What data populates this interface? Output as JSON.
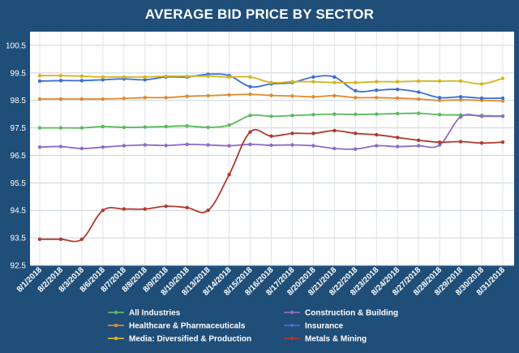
{
  "chart_data": {
    "type": "line",
    "title": "AVERAGE BID PRICE BY SECTOR",
    "xlabel": "",
    "ylabel": "",
    "ylim": [
      92.5,
      101
    ],
    "yticks": [
      92.5,
      93.5,
      94.5,
      95.5,
      96.5,
      97.5,
      98.5,
      99.5,
      100.5
    ],
    "grid": true,
    "legend_position": "bottom",
    "categories": [
      "8/1/2018",
      "8/2/2018",
      "8/3/2018",
      "8/6/2018",
      "8/7/2018",
      "8/8/2018",
      "8/9/2018",
      "8/10/2018",
      "8/13/2018",
      "8/14/2018",
      "8/15/2018",
      "8/16/2018",
      "8/17/2018",
      "8/20/2018",
      "8/21/2018",
      "8/22/2018",
      "8/23/2018",
      "8/24/2018",
      "8/27/2018",
      "8/28/2018",
      "8/29/2018",
      "8/30/2018",
      "8/31/2018"
    ],
    "series": [
      {
        "name": "All Industries",
        "color": "#5cb85c",
        "values": [
          97.5,
          97.5,
          97.5,
          97.55,
          97.52,
          97.53,
          97.55,
          97.57,
          97.52,
          97.6,
          97.95,
          97.92,
          97.95,
          97.98,
          98.0,
          97.99,
          98.0,
          98.02,
          98.03,
          97.98,
          97.97,
          97.95,
          97.93
        ]
      },
      {
        "name": "Construction & Building",
        "color": "#8e6ac8",
        "values": [
          96.8,
          96.82,
          96.75,
          96.8,
          96.85,
          96.88,
          96.86,
          96.9,
          96.88,
          96.85,
          96.9,
          96.87,
          96.88,
          96.85,
          96.75,
          96.73,
          96.85,
          96.82,
          96.85,
          96.88,
          97.9,
          97.92,
          97.92
        ]
      },
      {
        "name": "Healthcare & Pharmaceuticals",
        "color": "#e08a2c",
        "values": [
          98.55,
          98.55,
          98.55,
          98.55,
          98.57,
          98.6,
          98.6,
          98.65,
          98.67,
          98.7,
          98.72,
          98.68,
          98.66,
          98.63,
          98.67,
          98.6,
          98.6,
          98.58,
          98.55,
          98.5,
          98.52,
          98.5,
          98.48
        ]
      },
      {
        "name": "Insurance",
        "color": "#3b6fd6",
        "values": [
          99.2,
          99.22,
          99.22,
          99.25,
          99.28,
          99.25,
          99.35,
          99.35,
          99.45,
          99.4,
          99.0,
          99.1,
          99.15,
          99.35,
          99.35,
          98.85,
          98.87,
          98.9,
          98.8,
          98.6,
          98.63,
          98.58,
          98.58
        ]
      },
      {
        "name": "Media: Diversified & Production",
        "color": "#d6b51f",
        "values": [
          99.4,
          99.4,
          99.38,
          99.35,
          99.35,
          99.35,
          99.38,
          99.38,
          99.38,
          99.35,
          99.35,
          99.15,
          99.18,
          99.18,
          99.15,
          99.15,
          99.18,
          99.18,
          99.2,
          99.2,
          99.2,
          99.1,
          99.3
        ]
      },
      {
        "name": "Metals & Mining",
        "color": "#b03a2e",
        "values": [
          93.45,
          93.45,
          93.45,
          94.5,
          94.55,
          94.55,
          94.65,
          94.6,
          94.5,
          95.8,
          97.35,
          97.2,
          97.3,
          97.3,
          97.4,
          97.3,
          97.25,
          97.15,
          97.05,
          96.98,
          97.0,
          96.95,
          96.98
        ]
      }
    ]
  }
}
